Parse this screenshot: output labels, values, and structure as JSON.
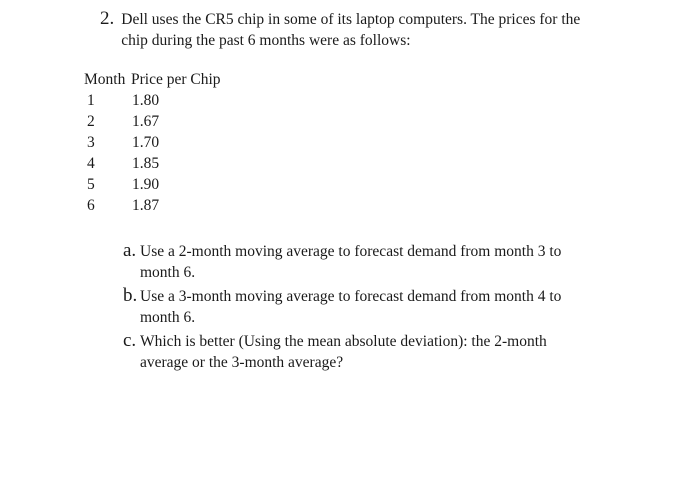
{
  "problem": {
    "number": "2.",
    "statement_line1": "Dell uses the CR5 chip in some of its laptop computers. The prices for the",
    "statement_line2": "chip during the past 6 months were as follows:"
  },
  "table": {
    "columns": [
      "Month",
      "Price per Chip"
    ],
    "rows": [
      {
        "month": "1",
        "price": "1.80"
      },
      {
        "month": "2",
        "price": "1.67"
      },
      {
        "month": "3",
        "price": "1.70"
      },
      {
        "month": "4",
        "price": "1.85"
      },
      {
        "month": "5",
        "price": "1.90"
      },
      {
        "month": "6",
        "price": "1.87"
      }
    ]
  },
  "questions": [
    {
      "label": "a.",
      "line1": "Use a 2-month moving average to forecast demand from month 3 to",
      "line2": "month 6."
    },
    {
      "label": "b.",
      "line1": "Use a 3-month moving average to forecast demand from month 4 to",
      "line2": "month 6."
    },
    {
      "label": "c.",
      "line1": "Which is better (Using the mean absolute deviation): the 2-month",
      "line2": "average or the 3-month average?"
    }
  ],
  "colors": {
    "background": "#ffffff",
    "text": "#1a1a1a"
  }
}
